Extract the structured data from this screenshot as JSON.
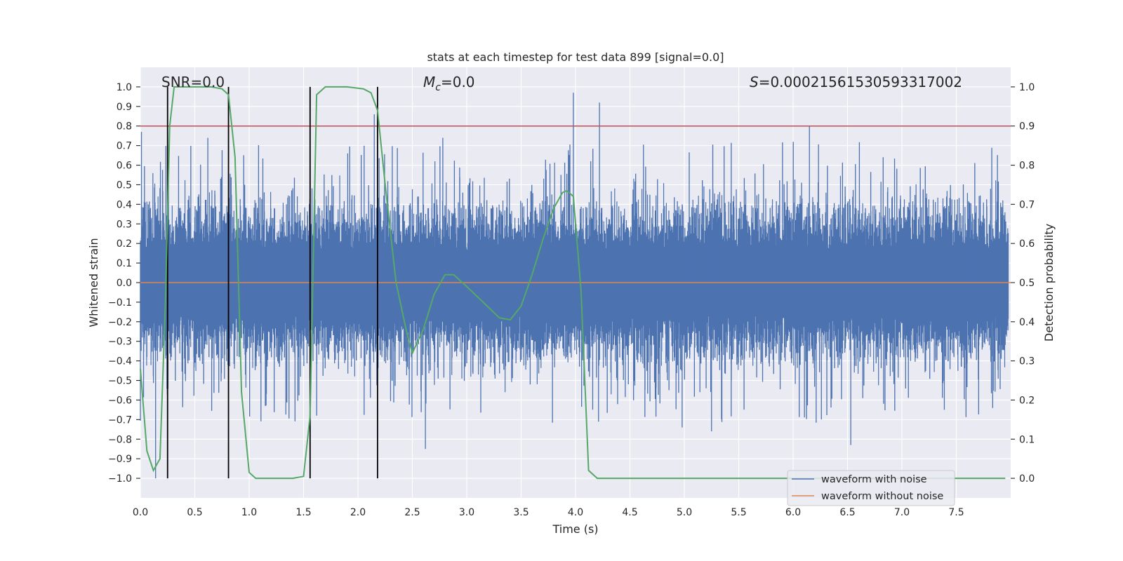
{
  "chart_data": {
    "type": "line",
    "title": "stats at each timestep for test data 899 [signal=0.0]",
    "xlabel": "Time (s)",
    "ylabel": "Whitened strain",
    "y2label": "Detection probability",
    "xlim": [
      0.0,
      8.0
    ],
    "ylim": [
      -1.1,
      1.1
    ],
    "y2lim": [
      -0.05,
      1.05
    ],
    "x_ticks": [
      "0.0",
      "0.5",
      "1.0",
      "1.5",
      "2.0",
      "2.5",
      "3.0",
      "3.5",
      "4.0",
      "4.5",
      "5.0",
      "5.5",
      "6.0",
      "6.5",
      "7.0",
      "7.5"
    ],
    "y_ticks": [
      "1.0",
      "0.9",
      "0.8",
      "0.7",
      "0.6",
      "0.5",
      "0.4",
      "0.3",
      "0.2",
      "0.1",
      "0.0",
      "−0.1",
      "−0.2",
      "−0.3",
      "−0.4",
      "−0.5",
      "−0.6",
      "−0.7",
      "−0.8",
      "−0.9",
      "−1.0"
    ],
    "y2_ticks": [
      "1.0",
      "0.9",
      "0.8",
      "0.7",
      "0.6",
      "0.5",
      "0.4",
      "0.3",
      "0.2",
      "0.1",
      "0.0"
    ],
    "annotations": {
      "snr": "SNR=0.0",
      "mc_symbol": "M",
      "mc_sub": "c",
      "mc_value": "=0.0",
      "s_symbol": "S",
      "s_value": "=0.00021561530593317002"
    },
    "legend": {
      "position": "lower right",
      "entries": [
        "waveform with noise",
        "waveform without noise"
      ]
    },
    "colors": {
      "noise": "#4c72b0",
      "clean": "#dd8452",
      "prob": "#55a868",
      "threshold": "#c44e52",
      "segments": "#000000",
      "axes_bg": "#eaeaf2",
      "grid": "#ffffff"
    },
    "threshold": 0.9,
    "segment_lines": [
      0.25,
      0.81,
      1.56,
      2.18
    ],
    "noise_seed": 899,
    "noise_spikes": [
      {
        "t": 0.01,
        "v": 0.77
      },
      {
        "t": 0.14,
        "v": -1.0
      },
      {
        "t": 0.62,
        "v": 0.74
      },
      {
        "t": 3.98,
        "v": 0.97
      },
      {
        "t": 4.22,
        "v": 0.92
      },
      {
        "t": 6.15,
        "v": 0.8
      },
      {
        "t": 2.62,
        "v": -0.85
      },
      {
        "t": 6.53,
        "v": -0.83
      },
      {
        "t": 5.25,
        "v": -0.76
      },
      {
        "t": 4.98,
        "v": -0.74
      },
      {
        "t": 2.15,
        "v": 0.86
      },
      {
        "t": 2.78,
        "v": 0.74
      }
    ],
    "clean_waveform": {
      "x": [
        0.0,
        8.0
      ],
      "y": [
        0.0,
        0.0
      ]
    },
    "detection_probability": {
      "x": [
        0.0,
        0.06,
        0.12,
        0.18,
        0.23,
        0.27,
        0.31,
        0.35,
        0.5,
        0.65,
        0.75,
        0.81,
        0.87,
        0.93,
        1.0,
        1.06,
        1.2,
        1.4,
        1.5,
        1.56,
        1.62,
        1.7,
        1.9,
        2.05,
        2.12,
        2.18,
        2.25,
        2.35,
        2.45,
        2.5,
        2.6,
        2.7,
        2.8,
        2.88,
        3.0,
        3.15,
        3.3,
        3.4,
        3.5,
        3.6,
        3.7,
        3.8,
        3.88,
        3.92,
        3.98,
        4.05,
        4.12,
        4.2,
        5.0,
        6.0,
        7.0,
        7.95
      ],
      "y": [
        0.28,
        0.07,
        0.02,
        0.05,
        0.45,
        0.9,
        1.0,
        1.0,
        1.0,
        1.0,
        0.995,
        0.98,
        0.82,
        0.22,
        0.015,
        0.0,
        0.0,
        0.0,
        0.005,
        0.16,
        0.98,
        1.0,
        1.0,
        0.995,
        0.985,
        0.94,
        0.75,
        0.5,
        0.37,
        0.32,
        0.38,
        0.47,
        0.52,
        0.52,
        0.49,
        0.45,
        0.41,
        0.405,
        0.44,
        0.52,
        0.61,
        0.69,
        0.73,
        0.735,
        0.72,
        0.48,
        0.02,
        0.0,
        0.0,
        0.0,
        0.0,
        0.0
      ]
    }
  }
}
